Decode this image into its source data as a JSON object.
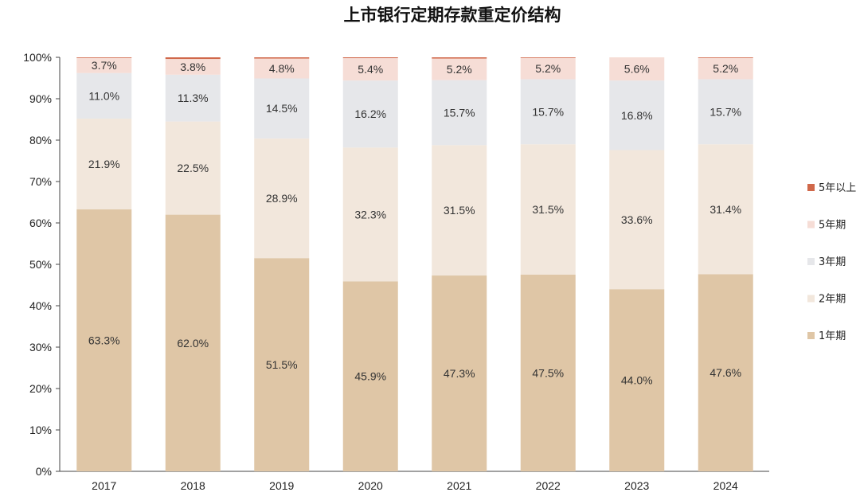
{
  "chart_data": {
    "type": "bar",
    "stacked": true,
    "percent": true,
    "title": "上市银行定期存款重定价结构",
    "categories": [
      "2017",
      "2018",
      "2019",
      "2020",
      "2021",
      "2022",
      "2023",
      "2024"
    ],
    "ylim": [
      0,
      100
    ],
    "yticks": [
      "0%",
      "10%",
      "20%",
      "30%",
      "40%",
      "50%",
      "60%",
      "70%",
      "80%",
      "90%",
      "100%"
    ],
    "grid": false,
    "legend_position": "right",
    "series": [
      {
        "name": "1年期",
        "color": "#dfc6a6",
        "values": [
          63.3,
          62.0,
          51.5,
          45.9,
          47.3,
          47.5,
          44.0,
          47.6
        ],
        "labels": [
          "63.3%",
          "62.0%",
          "51.5%",
          "45.9%",
          "47.3%",
          "47.5%",
          "44.0%",
          "47.6%"
        ]
      },
      {
        "name": "2年期",
        "color": "#f2e7dc",
        "values": [
          21.9,
          22.5,
          28.9,
          32.3,
          31.5,
          31.5,
          33.6,
          31.4
        ],
        "labels": [
          "21.9%",
          "22.5%",
          "28.9%",
          "32.3%",
          "31.5%",
          "31.5%",
          "33.6%",
          "31.4%"
        ]
      },
      {
        "name": "3年期",
        "color": "#e6e7ea",
        "values": [
          11.0,
          11.3,
          14.5,
          16.2,
          15.7,
          15.7,
          16.8,
          15.7
        ],
        "labels": [
          "11.0%",
          "11.3%",
          "14.5%",
          "16.2%",
          "15.7%",
          "15.7%",
          "16.8%",
          "15.7%"
        ]
      },
      {
        "name": "5年期",
        "color": "#f6ddd6",
        "values": [
          3.7,
          3.8,
          4.8,
          5.4,
          5.2,
          5.2,
          5.6,
          5.2
        ],
        "labels": [
          "3.7%",
          "3.8%",
          "4.8%",
          "5.4%",
          "5.2%",
          "5.2%",
          "5.6%",
          "5.2%"
        ]
      },
      {
        "name": "5年以上",
        "color": "#d0684a",
        "values": [
          0.1,
          0.4,
          0.3,
          0.2,
          0.3,
          0.1,
          0.0,
          0.1
        ],
        "labels": []
      }
    ]
  }
}
